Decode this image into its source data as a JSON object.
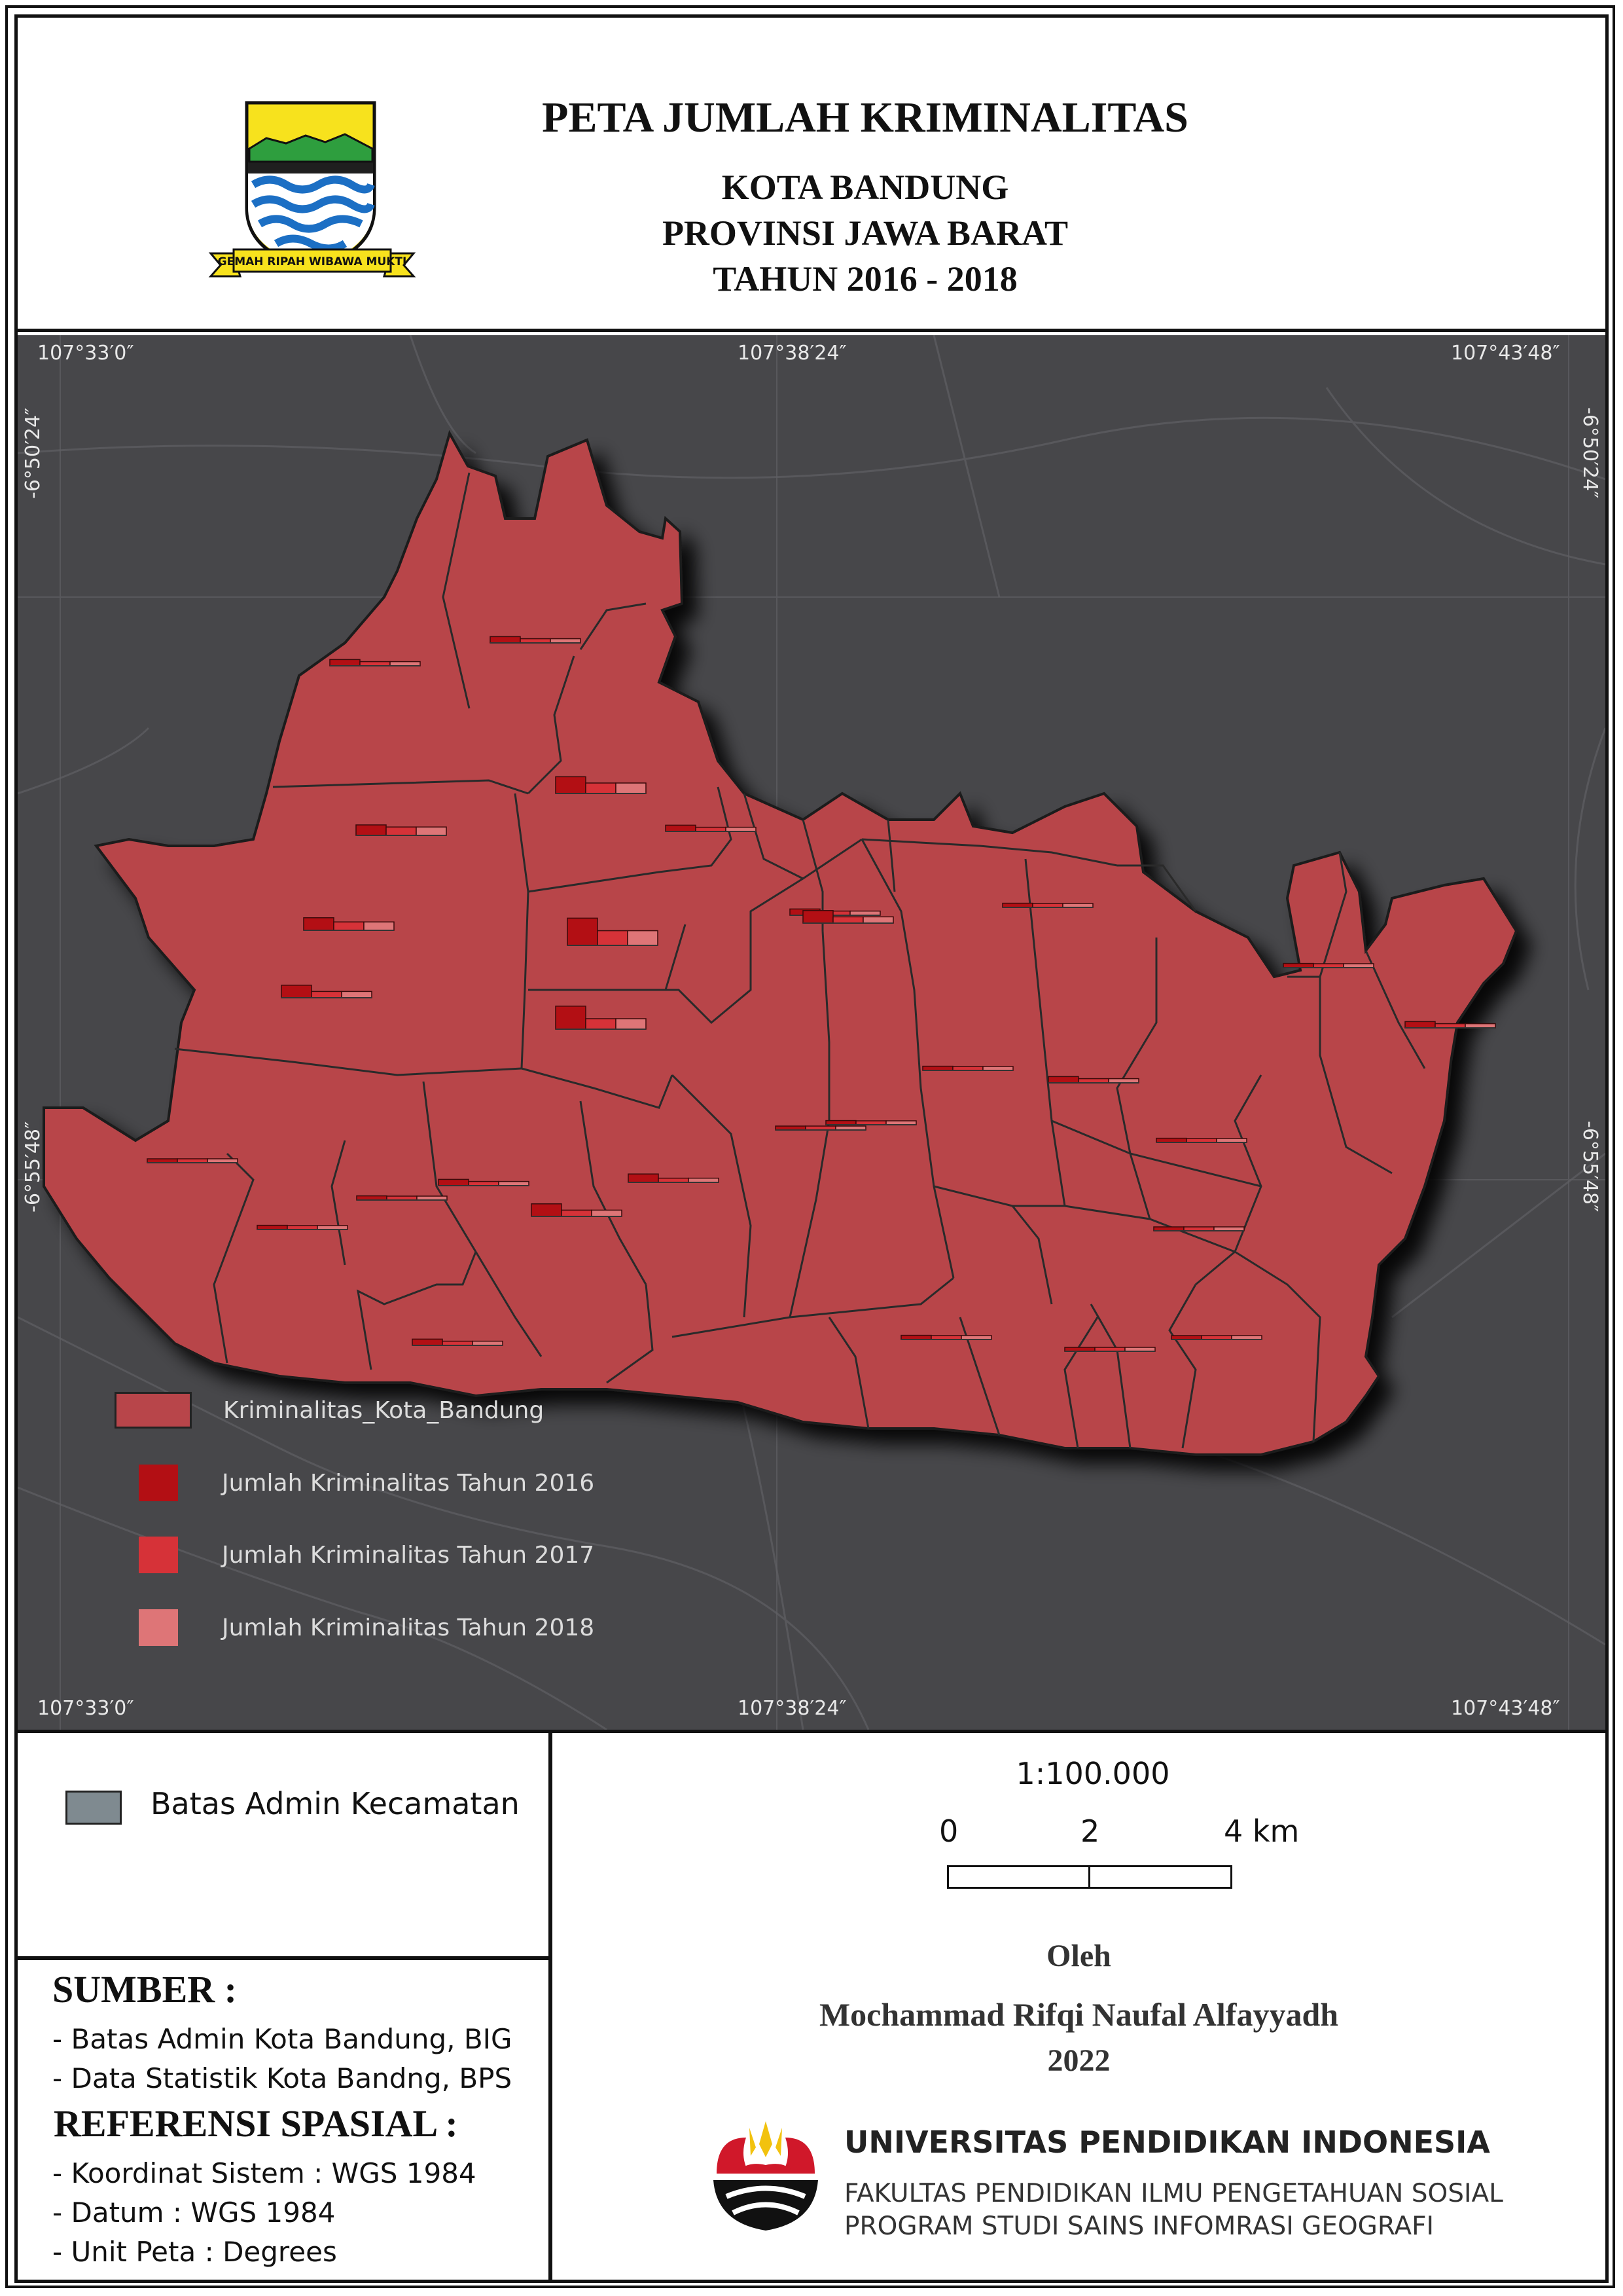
{
  "header": {
    "title": "PETA JUMLAH KRIMINALITAS",
    "subtitle_city": "KOTA BANDUNG",
    "subtitle_province": "PROVINSI JAWA BARAT",
    "subtitle_years": "TAHUN 2016 - 2018",
    "logo_motto": "GEMAH RIPAH WIBAWA MUKTI"
  },
  "map": {
    "coords_top": [
      "107°33′0″",
      "107°38′24″",
      "107°43′48″"
    ],
    "coords_bottom": [
      "107°33′0″",
      "107°38′24″",
      "107°43′48″"
    ],
    "coords_left": [
      "-6°50′24″",
      "-6°55′48″"
    ],
    "coords_right": [
      "-6°50′24″",
      "-6°55′48″"
    ],
    "colors": {
      "background": "#47474a",
      "polygon": "#b8454a",
      "y2016": "#b30f14",
      "y2017": "#d63238",
      "y2018": "#de7577"
    },
    "legend": [
      {
        "label": "Kriminalitas_Kota_Bandung",
        "color": "#b8454a"
      },
      {
        "label": "Jumlah Kriminalitas Tahun 2016",
        "color": "#b30f14"
      },
      {
        "label": "Jumlah Kriminalitas Tahun 2017",
        "color": "#d63238"
      },
      {
        "label": "Jumlah Kriminalitas Tahun 2018",
        "color": "#de7577"
      }
    ],
    "bar_symbols": [
      {
        "v2016": 3,
        "v2017": 2,
        "v2018": 2
      },
      {
        "v2016": 3,
        "v2017": 2,
        "v2018": 2
      },
      {
        "v2016": 5,
        "v2017": 4,
        "v2018": 4
      },
      {
        "v2016": 8,
        "v2017": 5,
        "v2018": 5
      },
      {
        "v2016": 3,
        "v2017": 2,
        "v2018": 2
      },
      {
        "v2016": 6,
        "v2017": 4,
        "v2018": 4
      },
      {
        "v2016": 6,
        "v2017": 3,
        "v2018": 3
      },
      {
        "v2016": 13,
        "v2017": 7,
        "v2018": 7
      },
      {
        "v2016": 3,
        "v2017": 2,
        "v2018": 2
      },
      {
        "v2016": 6,
        "v2017": 3,
        "v2018": 3
      },
      {
        "v2016": 11,
        "v2017": 5,
        "v2018": 5
      },
      {
        "v2016": 2,
        "v2017": 1,
        "v2018": 1
      },
      {
        "v2016": 2,
        "v2017": 1,
        "v2018": 1
      },
      {
        "v2016": 3,
        "v2017": 2,
        "v2018": 2
      },
      {
        "v2016": 2,
        "v2017": 1,
        "v2018": 1
      },
      {
        "v2016": 3,
        "v2017": 2,
        "v2018": 2
      },
      {
        "v2016": 1,
        "v2017": 1,
        "v2018": 1
      },
      {
        "v2016": 2,
        "v2017": 1,
        "v2018": 1
      },
      {
        "v2016": 2,
        "v2017": 1,
        "v2018": 1
      },
      {
        "v2016": 1,
        "v2017": 1,
        "v2018": 1
      },
      {
        "v2016": 4,
        "v2017": 2,
        "v2018": 2
      },
      {
        "v2016": 6,
        "v2017": 3,
        "v2018": 3
      },
      {
        "v2016": 2,
        "v2017": 1,
        "v2018": 1
      },
      {
        "v2016": 3,
        "v2017": 2,
        "v2018": 2
      },
      {
        "v2016": 2,
        "v2017": 1,
        "v2018": 1
      },
      {
        "v2016": 1,
        "v2017": 1,
        "v2018": 1
      },
      {
        "v2016": 2,
        "v2017": 1,
        "v2018": 1
      },
      {
        "v2016": 1,
        "v2017": 1,
        "v2018": 1
      },
      {
        "v2016": 1,
        "v2017": 1,
        "v2018": 1
      },
      {
        "v2016": 3,
        "v2017": 2,
        "v2018": 2
      }
    ]
  },
  "admin_legend": {
    "label": "Batas Admin Kecamatan",
    "color": "#7f8a90"
  },
  "sumber": {
    "heading": "SUMBER :",
    "items": [
      "- Batas Admin Kota Bandung, BIG",
      "- Data Statistik Kota Bandng, BPS"
    ]
  },
  "referensi": {
    "heading": "REFERENSI SPASIAL :",
    "items": [
      "- Koordinat Sistem : WGS 1984",
      "- Datum : WGS 1984",
      "- Unit Peta : Degrees"
    ]
  },
  "scale": {
    "ratio": "1:100.000",
    "t0": "0",
    "t1": "2",
    "t2": "4 km"
  },
  "credit": {
    "by": "Oleh",
    "author": "Mochammad Rifqi Naufal Alfayyadh",
    "year": "2022"
  },
  "institution": {
    "name": "UNIVERSITAS PENDIDIKAN INDONESIA",
    "faculty": "FAKULTAS PENDIDIKAN ILMU PENGETAHUAN SOSIAL",
    "program": "PROGRAM STUDI SAINS INFOMRASI GEOGRAFI"
  }
}
